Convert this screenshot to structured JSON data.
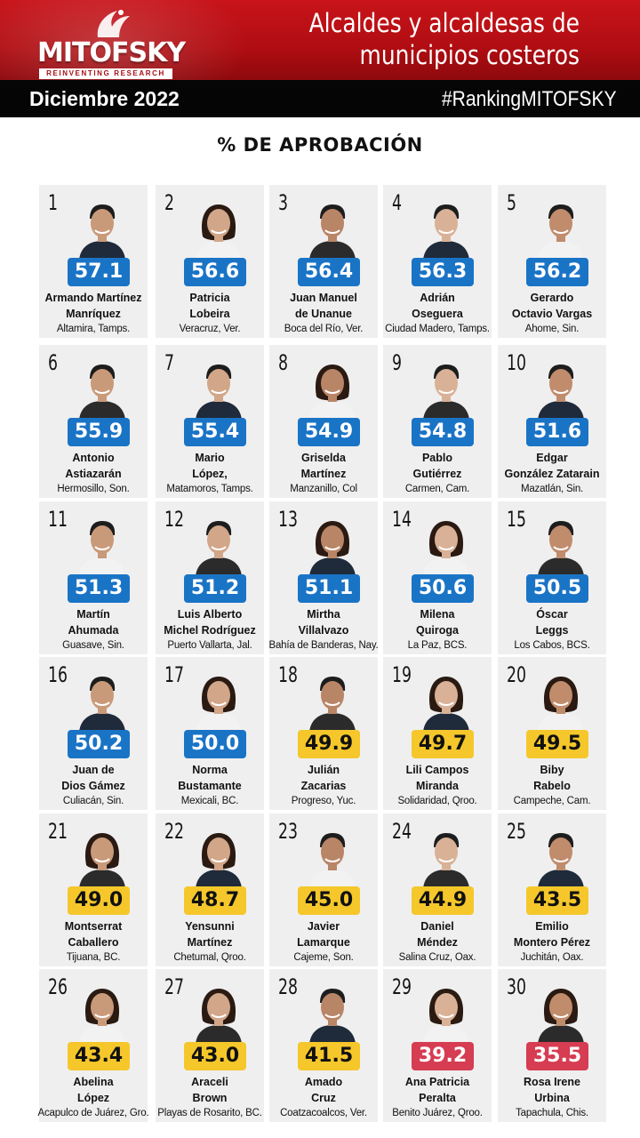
{
  "header": {
    "logo_text": "MITOFSKY",
    "logo_tagline": "REINVENTING RESEARCH",
    "title_line1": "Alcaldes y alcaldesas de",
    "title_line2": "municipios costeros",
    "date": "Diciembre 2022",
    "hashtag": "#RankingMITOFSKY"
  },
  "section_title": "% DE APROBACIÓN",
  "colors": {
    "header_red": "#c8141a",
    "subbar_black": "#050505",
    "score_blue": "#1a74c6",
    "score_yellow": "#f5c72b",
    "score_red": "#d63c52",
    "card_bg": "#efefef"
  },
  "mayors": [
    {
      "rank": "1",
      "score": "57.1",
      "tier": "blue",
      "name1": "Armando Martínez",
      "name2": "Manríquez",
      "place": "Altamira, Tamps.",
      "gender": "m"
    },
    {
      "rank": "2",
      "score": "56.6",
      "tier": "blue",
      "name1": "Patricia",
      "name2": "Lobeira",
      "place": "Veracruz, Ver.",
      "gender": "f"
    },
    {
      "rank": "3",
      "score": "56.4",
      "tier": "blue",
      "name1": "Juan Manuel",
      "name2": "de Unanue",
      "place": "Boca del Río, Ver.",
      "gender": "m"
    },
    {
      "rank": "4",
      "score": "56.3",
      "tier": "blue",
      "name1": "Adrián",
      "name2": "Oseguera",
      "place": "Ciudad Madero, Tamps.",
      "gender": "m"
    },
    {
      "rank": "5",
      "score": "56.2",
      "tier": "blue",
      "name1": "Gerardo",
      "name2": "Octavio Vargas",
      "place": "Ahome, Sin.",
      "gender": "m"
    },
    {
      "rank": "6",
      "score": "55.9",
      "tier": "blue",
      "name1": "Antonio",
      "name2": "Astiazarán",
      "place": "Hermosillo, Son.",
      "gender": "m"
    },
    {
      "rank": "7",
      "score": "55.4",
      "tier": "blue",
      "name1": "Mario",
      "name2": "López,",
      "place": "Matamoros, Tamps.",
      "gender": "m"
    },
    {
      "rank": "8",
      "score": "54.9",
      "tier": "blue",
      "name1": "Griselda",
      "name2": "Martínez",
      "place": "Manzanillo, Col",
      "gender": "f"
    },
    {
      "rank": "9",
      "score": "54.8",
      "tier": "blue",
      "name1": "Pablo",
      "name2": "Gutiérrez",
      "place": "Carmen, Cam.",
      "gender": "m"
    },
    {
      "rank": "10",
      "score": "51.6",
      "tier": "blue",
      "name1": "Edgar",
      "name2": "González Zatarain",
      "place": "Mazatlán, Sin.",
      "gender": "m"
    },
    {
      "rank": "11",
      "score": "51.3",
      "tier": "blue",
      "name1": "Martín",
      "name2": "Ahumada",
      "place": "Guasave, Sin.",
      "gender": "m"
    },
    {
      "rank": "12",
      "score": "51.2",
      "tier": "blue",
      "name1": "Luis Alberto",
      "name2": "Michel Rodríguez",
      "place": "Puerto Vallarta, Jal.",
      "gender": "m"
    },
    {
      "rank": "13",
      "score": "51.1",
      "tier": "blue",
      "name1": "Mirtha",
      "name2": "Villalvazo",
      "place": "Bahía de Banderas, Nay.",
      "gender": "f"
    },
    {
      "rank": "14",
      "score": "50.6",
      "tier": "blue",
      "name1": "Milena",
      "name2": "Quiroga",
      "place": "La Paz, BCS.",
      "gender": "f"
    },
    {
      "rank": "15",
      "score": "50.5",
      "tier": "blue",
      "name1": "Óscar",
      "name2": "Leggs",
      "place": "Los Cabos, BCS.",
      "gender": "m"
    },
    {
      "rank": "16",
      "score": "50.2",
      "tier": "blue",
      "name1": "Juan de",
      "name2": "Dios Gámez",
      "place": "Culiacán, Sin.",
      "gender": "m"
    },
    {
      "rank": "17",
      "score": "50.0",
      "tier": "blue",
      "name1": "Norma",
      "name2": "Bustamante",
      "place": "Mexicali, BC.",
      "gender": "f"
    },
    {
      "rank": "18",
      "score": "49.9",
      "tier": "yellow",
      "name1": "Julián",
      "name2": "Zacarias",
      "place": "Progreso, Yuc.",
      "gender": "m"
    },
    {
      "rank": "19",
      "score": "49.7",
      "tier": "yellow",
      "name1": "Lili Campos",
      "name2": "Miranda",
      "place": "Solidaridad, Qroo.",
      "gender": "f"
    },
    {
      "rank": "20",
      "score": "49.5",
      "tier": "yellow",
      "name1": "Biby",
      "name2": "Rabelo",
      "place": "Campeche, Cam.",
      "gender": "f"
    },
    {
      "rank": "21",
      "score": "49.0",
      "tier": "yellow",
      "name1": "Montserrat",
      "name2": "Caballero",
      "place": "Tijuana, BC.",
      "gender": "f"
    },
    {
      "rank": "22",
      "score": "48.7",
      "tier": "yellow",
      "name1": "Yensunni",
      "name2": "Martínez",
      "place": "Chetumal, Qroo.",
      "gender": "f"
    },
    {
      "rank": "23",
      "score": "45.0",
      "tier": "yellow",
      "name1": "Javier",
      "name2": "Lamarque",
      "place": "Cajeme, Son.",
      "gender": "m"
    },
    {
      "rank": "24",
      "score": "44.9",
      "tier": "yellow",
      "name1": "Daniel",
      "name2": "Méndez",
      "place": "Salina Cruz, Oax.",
      "gender": "m"
    },
    {
      "rank": "25",
      "score": "43.5",
      "tier": "yellow",
      "name1": "Emilio",
      "name2": "Montero Pérez",
      "place": "Juchitán, Oax.",
      "gender": "m"
    },
    {
      "rank": "26",
      "score": "43.4",
      "tier": "yellow",
      "name1": "Abelina",
      "name2": "López",
      "place": "Acapulco de Juárez, Gro.",
      "gender": "f"
    },
    {
      "rank": "27",
      "score": "43.0",
      "tier": "yellow",
      "name1": "Araceli",
      "name2": "Brown",
      "place": "Playas de Rosarito, BC.",
      "gender": "f"
    },
    {
      "rank": "28",
      "score": "41.5",
      "tier": "yellow",
      "name1": "Amado",
      "name2": "Cruz",
      "place": "Coatzacoalcos, Ver.",
      "gender": "m"
    },
    {
      "rank": "29",
      "score": "39.2",
      "tier": "red",
      "name1": "Ana Patricia",
      "name2": "Peralta",
      "place": "Benito Juárez, Qroo.",
      "gender": "f"
    },
    {
      "rank": "30",
      "score": "35.5",
      "tier": "red",
      "name1": "Rosa Irene",
      "name2": "Urbina",
      "place": "Tapachula, Chis.",
      "gender": "f"
    }
  ]
}
